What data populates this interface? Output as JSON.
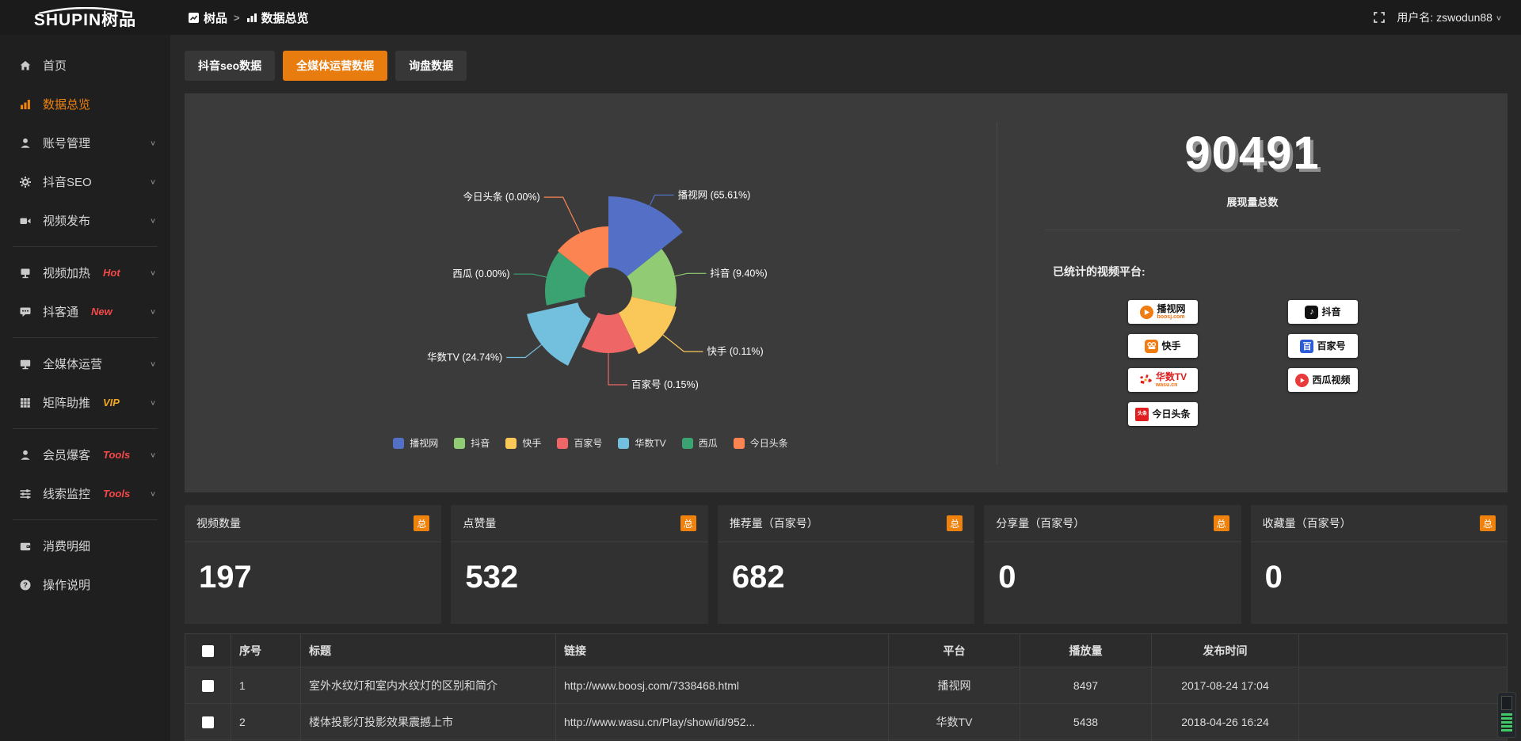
{
  "topbar": {
    "logo": "SHUPIN树品",
    "breadcrumb": {
      "root": "树品",
      "separator": ">",
      "current": "数据总览"
    },
    "username": "用户名: zswodun88"
  },
  "sidebar": {
    "items": [
      {
        "label": "首页",
        "icon": "home-icon"
      },
      {
        "label": "数据总览",
        "icon": "bar-chart-icon",
        "active": true
      },
      {
        "label": "账号管理",
        "icon": "user-icon",
        "chevron": true
      },
      {
        "label": "抖音SEO",
        "icon": "gear-icon",
        "chevron": true
      },
      {
        "label": "视频发布",
        "icon": "video-publish-icon",
        "chevron": true
      },
      {
        "divider": true
      },
      {
        "label": "视频加热",
        "icon": "screen-icon",
        "badge": "Hot",
        "badge_color": "#f54848",
        "chevron": true
      },
      {
        "label": "抖客通",
        "icon": "chat-icon",
        "badge": "New",
        "badge_color": "#f54848",
        "chevron": true
      },
      {
        "divider": true
      },
      {
        "label": "全媒体运营",
        "icon": "monitor-icon",
        "chevron": true
      },
      {
        "label": "矩阵助推",
        "icon": "grid-icon",
        "badge": "VIP",
        "badge_color": "#f0a722",
        "chevron": true
      },
      {
        "divider": true
      },
      {
        "label": "会员爆客",
        "icon": "member-icon",
        "badge": "Tools",
        "badge_color": "#f54848",
        "chevron": true
      },
      {
        "label": "线索监控",
        "icon": "sliders-icon",
        "badge": "Tools",
        "badge_color": "#f54848",
        "chevron": true
      },
      {
        "divider": true
      },
      {
        "label": "消费明细",
        "icon": "wallet-icon"
      },
      {
        "label": "操作说明",
        "icon": "help-icon"
      }
    ]
  },
  "tabs": [
    {
      "label": "抖音seo数据",
      "active": false
    },
    {
      "label": "全媒体运营数据",
      "active": true
    },
    {
      "label": "询盘数据",
      "active": false
    }
  ],
  "chart_data": {
    "type": "pie",
    "subtype": "rose",
    "items": [
      {
        "name": "播视网",
        "pct": "65.61",
        "color": "#5470c6",
        "radius": 120,
        "elbow": 135
      },
      {
        "name": "抖音",
        "pct": "9.40",
        "color": "#91cc75",
        "radius": 86,
        "elbow": 102
      },
      {
        "name": "快手",
        "pct": "0.11",
        "color": "#fac858",
        "radius": 88,
        "elbow": 122
      },
      {
        "name": "百家号",
        "pct": "0.15",
        "color": "#ee6666",
        "radius": 78,
        "elbow": 118
      },
      {
        "name": "华数TV",
        "pct": "24.74",
        "color": "#73c0de",
        "radius": 96,
        "elbow": 122,
        "offset": 12
      },
      {
        "name": "西瓜",
        "pct": "0.00",
        "color": "#3ba272",
        "radius": 80,
        "elbow": 98
      },
      {
        "name": "今日头条",
        "pct": "0.00",
        "color": "#fc8452",
        "radius": 82,
        "elbow": 132
      }
    ],
    "legend": [
      "播视网",
      "抖音",
      "快手",
      "百家号",
      "华数TV",
      "西瓜",
      "今日头条"
    ],
    "legend_position": "bottom",
    "center": [
      535,
      250
    ],
    "inner_radius": 30,
    "label_format": "{name} ({pct}%)"
  },
  "summary": {
    "big_number": "90491",
    "big_label": "展现量总数",
    "platforms_label": "已统计的视频平台:",
    "platforms": [
      {
        "name": "播视网",
        "sub": "boosj.com",
        "icon": "boosj-logo"
      },
      {
        "name": "快手",
        "icon": "kuaishou-logo"
      },
      {
        "name": "华数TV",
        "sub": "wasu.cn",
        "icon": "wasu-logo",
        "name_color": "#e02020"
      },
      {
        "name": "今日头条",
        "icon": "toutiao-logo"
      },
      {
        "name": "抖音",
        "icon": "douyin-logo"
      },
      {
        "name": "百家号",
        "icon": "baijiahao-logo"
      },
      {
        "name": "西瓜视频",
        "icon": "xigua-logo"
      }
    ]
  },
  "stat_cards": [
    {
      "title": "视频数量",
      "badge": "总",
      "value": "197"
    },
    {
      "title": "点赞量",
      "badge": "总",
      "value": "532"
    },
    {
      "title": "推荐量（百家号）",
      "badge": "总",
      "value": "682"
    },
    {
      "title": "分享量（百家号）",
      "badge": "总",
      "value": "0"
    },
    {
      "title": "收藏量（百家号）",
      "badge": "总",
      "value": "0"
    }
  ],
  "table": {
    "columns": [
      "",
      "序号",
      "标题",
      "链接",
      "平台",
      "播放量",
      "发布时间"
    ],
    "rows": [
      {
        "index": "1",
        "title": "室外水纹灯和室内水纹灯的区别和简介",
        "link": "http://www.boosj.com/7338468.html",
        "platform": "播视网",
        "views": "8497",
        "time": "2017-08-24 17:04"
      },
      {
        "index": "2",
        "title": "楼体投影灯投影效果震撼上市",
        "link": "http://www.wasu.cn/Play/show/id/952...",
        "platform": "华数TV",
        "views": "5438",
        "time": "2018-04-26 16:24"
      }
    ]
  }
}
